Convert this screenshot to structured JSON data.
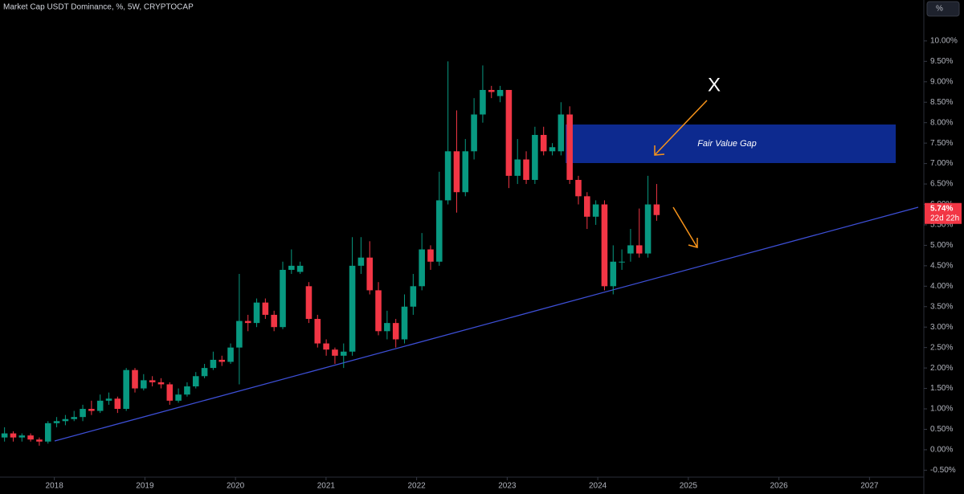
{
  "chart_data": {
    "type": "candlestick",
    "title": "Market Cap USDT Dominance, %, 5W, CRYPTOCAP",
    "unit_button": "%",
    "last_price_label": "5.74%",
    "countdown": "22d 22h",
    "annotations": [
      "Fair Value Gap",
      "X"
    ],
    "up_color": "#089981",
    "down_color": "#f23645",
    "x": [
      2017.45,
      2017.546,
      2017.642,
      2017.738,
      2017.834,
      2017.93,
      2018.026,
      2018.122,
      2018.218,
      2018.314,
      2018.41,
      2018.506,
      2018.602,
      2018.698,
      2018.794,
      2018.89,
      2018.986,
      2019.082,
      2019.178,
      2019.274,
      2019.37,
      2019.466,
      2019.562,
      2019.658,
      2019.754,
      2019.85,
      2019.946,
      2020.042,
      2020.138,
      2020.234,
      2020.33,
      2020.426,
      2020.522,
      2020.618,
      2020.714,
      2020.81,
      2020.906,
      2021.002,
      2021.098,
      2021.194,
      2021.29,
      2021.386,
      2021.482,
      2021.578,
      2021.674,
      2021.77,
      2021.866,
      2021.962,
      2022.058,
      2022.154,
      2022.25,
      2022.346,
      2022.442,
      2022.538,
      2022.634,
      2022.73,
      2022.826,
      2022.922,
      2023.018,
      2023.114,
      2023.21,
      2023.306,
      2023.402,
      2023.498,
      2023.594,
      2023.69,
      2023.786,
      2023.882,
      2023.978,
      2024.074,
      2024.17,
      2024.266,
      2024.362,
      2024.458,
      2024.554,
      2024.65
    ],
    "open": [
      0.3,
      0.4,
      0.3,
      0.35,
      0.25,
      0.2,
      0.65,
      0.7,
      0.75,
      0.8,
      1.0,
      0.95,
      1.2,
      1.25,
      1.0,
      1.95,
      1.5,
      1.7,
      1.65,
      1.6,
      1.2,
      1.35,
      1.55,
      1.8,
      2.0,
      2.2,
      2.15,
      2.5,
      3.15,
      3.1,
      3.6,
      3.3,
      3.0,
      4.4,
      4.35,
      4.0,
      3.2,
      2.6,
      2.45,
      2.3,
      2.4,
      4.5,
      4.7,
      3.9,
      2.9,
      3.1,
      2.7,
      3.5,
      4.0,
      4.9,
      4.6,
      6.1,
      7.3,
      6.3,
      7.3,
      8.2,
      8.8,
      8.65,
      8.8,
      6.7,
      7.1,
      6.6,
      7.7,
      7.3,
      7.3,
      8.2,
      6.6,
      6.2,
      5.7,
      6.0,
      4.0,
      4.6,
      4.8,
      5.0,
      4.8,
      6.0
    ],
    "high": [
      0.55,
      0.45,
      0.4,
      0.4,
      0.3,
      0.7,
      0.8,
      0.85,
      0.95,
      1.1,
      1.2,
      1.35,
      1.4,
      1.3,
      2.0,
      2.0,
      1.85,
      1.8,
      1.75,
      1.65,
      1.5,
      1.65,
      1.9,
      2.1,
      2.4,
      2.3,
      2.6,
      4.3,
      3.3,
      3.7,
      3.7,
      3.4,
      4.6,
      4.9,
      4.6,
      4.1,
      3.3,
      2.7,
      2.5,
      2.6,
      5.2,
      5.2,
      5.1,
      4.1,
      3.4,
      3.2,
      3.8,
      4.3,
      5.3,
      5.0,
      6.8,
      9.5,
      8.3,
      7.6,
      8.6,
      9.4,
      8.9,
      8.9,
      8.8,
      7.6,
      7.3,
      7.9,
      7.9,
      7.5,
      8.5,
      8.4,
      6.7,
      6.3,
      6.1,
      6.1,
      5.0,
      4.9,
      5.4,
      5.9,
      6.7,
      6.5
    ],
    "low": [
      0.2,
      0.2,
      0.2,
      0.2,
      0.1,
      0.15,
      0.55,
      0.6,
      0.7,
      0.7,
      0.85,
      0.9,
      1.1,
      0.9,
      0.95,
      1.4,
      1.45,
      1.55,
      1.5,
      1.1,
      1.15,
      1.3,
      1.5,
      1.75,
      1.95,
      2.05,
      2.1,
      1.6,
      2.9,
      3.0,
      3.2,
      2.9,
      2.95,
      4.3,
      4.3,
      3.1,
      2.5,
      2.3,
      2.1,
      2.0,
      2.3,
      4.3,
      3.8,
      2.8,
      2.7,
      2.5,
      2.6,
      3.3,
      3.9,
      4.4,
      4.5,
      6.0,
      5.8,
      6.2,
      7.1,
      8.0,
      8.6,
      8.5,
      6.4,
      6.5,
      6.5,
      6.5,
      7.2,
      7.2,
      7.2,
      6.5,
      6.0,
      5.4,
      5.5,
      3.9,
      3.8,
      4.4,
      4.6,
      4.7,
      4.7,
      5.6
    ],
    "close": [
      0.4,
      0.3,
      0.35,
      0.25,
      0.2,
      0.65,
      0.7,
      0.75,
      0.8,
      1.0,
      0.95,
      1.2,
      1.25,
      1.0,
      1.95,
      1.5,
      1.7,
      1.65,
      1.6,
      1.2,
      1.35,
      1.55,
      1.8,
      2.0,
      2.2,
      2.15,
      2.5,
      3.15,
      3.1,
      3.6,
      3.3,
      3.0,
      4.4,
      4.5,
      4.5,
      3.2,
      2.6,
      2.45,
      2.3,
      2.4,
      4.5,
      4.7,
      3.9,
      2.9,
      3.1,
      2.7,
      3.5,
      4.0,
      4.9,
      4.6,
      6.1,
      7.3,
      6.3,
      7.3,
      8.2,
      8.8,
      8.75,
      8.8,
      6.7,
      7.1,
      6.6,
      7.7,
      7.3,
      7.4,
      8.2,
      6.6,
      6.2,
      5.7,
      6.0,
      4.0,
      4.6,
      4.6,
      5.0,
      4.8,
      6.0,
      5.74
    ],
    "xlim": [
      2017.4,
      2027.6
    ],
    "xticks": [
      2018,
      2019,
      2020,
      2021,
      2022,
      2023,
      2024,
      2025,
      2026,
      2027
    ],
    "ylim": [
      -0.65,
      11
    ],
    "yticks": [
      {
        "value": 10,
        "label": "10.00%"
      },
      {
        "value": 9.5,
        "label": "9.50%"
      },
      {
        "value": 9,
        "label": "9.00%"
      },
      {
        "value": 8.5,
        "label": "8.50%"
      },
      {
        "value": 8,
        "label": "8.00%"
      },
      {
        "value": 7.5,
        "label": "7.50%"
      },
      {
        "value": 7,
        "label": "7.00%"
      },
      {
        "value": 6.5,
        "label": "6.50%"
      },
      {
        "value": 6,
        "label": "6.00%"
      },
      {
        "value": 5.5,
        "label": "5.50%"
      },
      {
        "value": 5,
        "label": "5.00%"
      },
      {
        "value": 4.5,
        "label": "4.50%"
      },
      {
        "value": 4,
        "label": "4.00%"
      },
      {
        "value": 3.5,
        "label": "3.50%"
      },
      {
        "value": 3,
        "label": "3.00%"
      },
      {
        "value": 2.5,
        "label": "2.50%"
      },
      {
        "value": 2,
        "label": "2.00%"
      },
      {
        "value": 1.5,
        "label": "1.50%"
      },
      {
        "value": 1,
        "label": "1.00%"
      },
      {
        "value": 0.5,
        "label": "0.50%"
      },
      {
        "value": 0,
        "label": "0.00%"
      },
      {
        "value": -0.5,
        "label": "-0.50%"
      }
    ]
  }
}
